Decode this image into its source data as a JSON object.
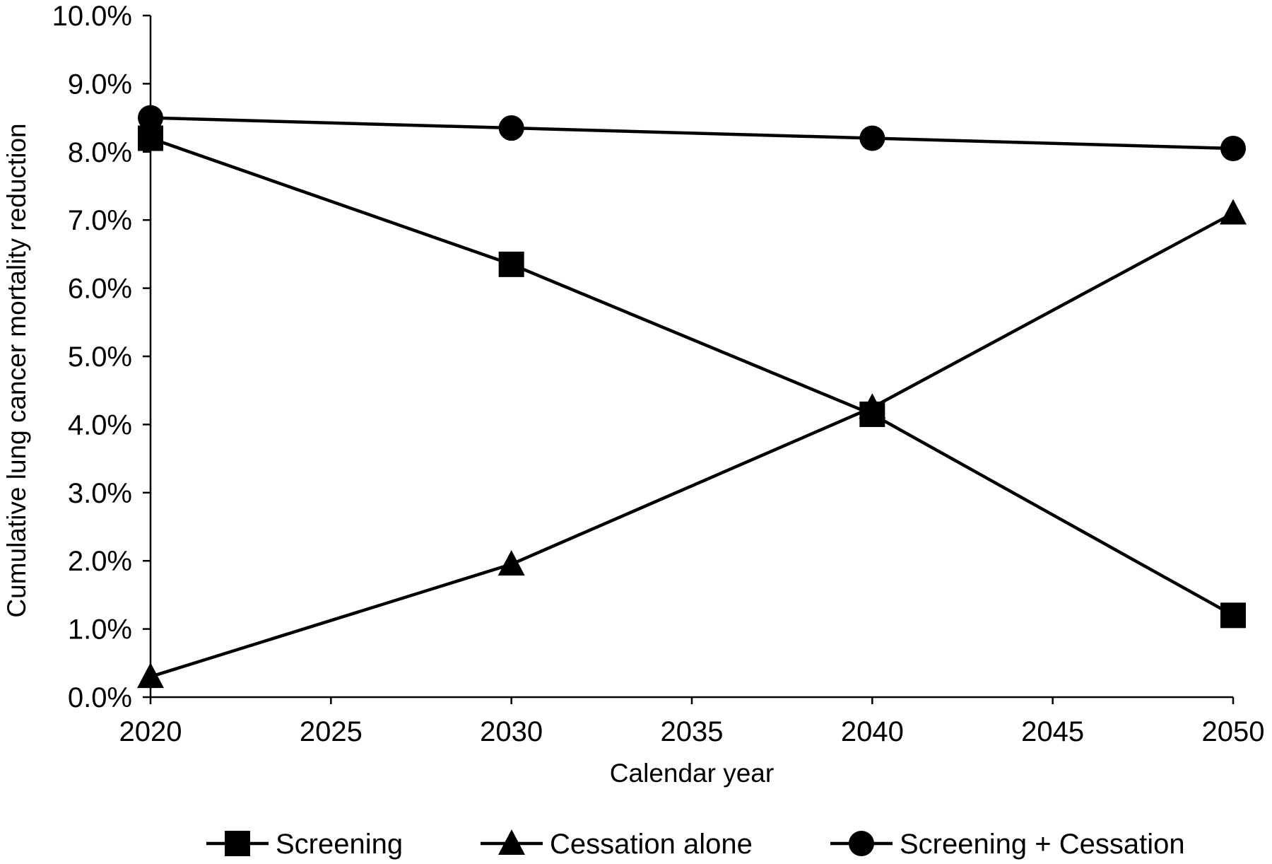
{
  "chart_data": {
    "type": "line",
    "title": "",
    "xlabel": "Calendar year",
    "ylabel": "Cumulative lung cancer mortality reduction",
    "xlim": [
      2020,
      2050
    ],
    "ylim": [
      0,
      10
    ],
    "x_ticks": [
      2020,
      2025,
      2030,
      2035,
      2040,
      2045,
      2050
    ],
    "x_tick_labels": [
      "2020",
      "2025",
      "2030",
      "2035",
      "2040",
      "2045",
      "2050"
    ],
    "y_ticks": [
      0,
      1,
      2,
      3,
      4,
      5,
      6,
      7,
      8,
      9,
      10
    ],
    "y_tick_labels": [
      "0.0%",
      "1.0%",
      "2.0%",
      "3.0%",
      "4.0%",
      "5.0%",
      "6.0%",
      "7.0%",
      "8.0%",
      "9.0%",
      "10.0%"
    ],
    "y_unit": "%",
    "grid": false,
    "legend_position": "bottom",
    "x": [
      2020,
      2030,
      2040,
      2050
    ],
    "series": [
      {
        "name": "Screening",
        "marker": "square",
        "values": [
          8.2,
          6.35,
          4.15,
          1.2
        ]
      },
      {
        "name": "Cessation alone",
        "marker": "triangle",
        "values": [
          0.3,
          1.95,
          4.25,
          7.1
        ]
      },
      {
        "name": "Screening + Cessation",
        "marker": "circle",
        "values": [
          8.5,
          8.35,
          8.2,
          8.05
        ]
      }
    ],
    "line_color": "#000000"
  }
}
